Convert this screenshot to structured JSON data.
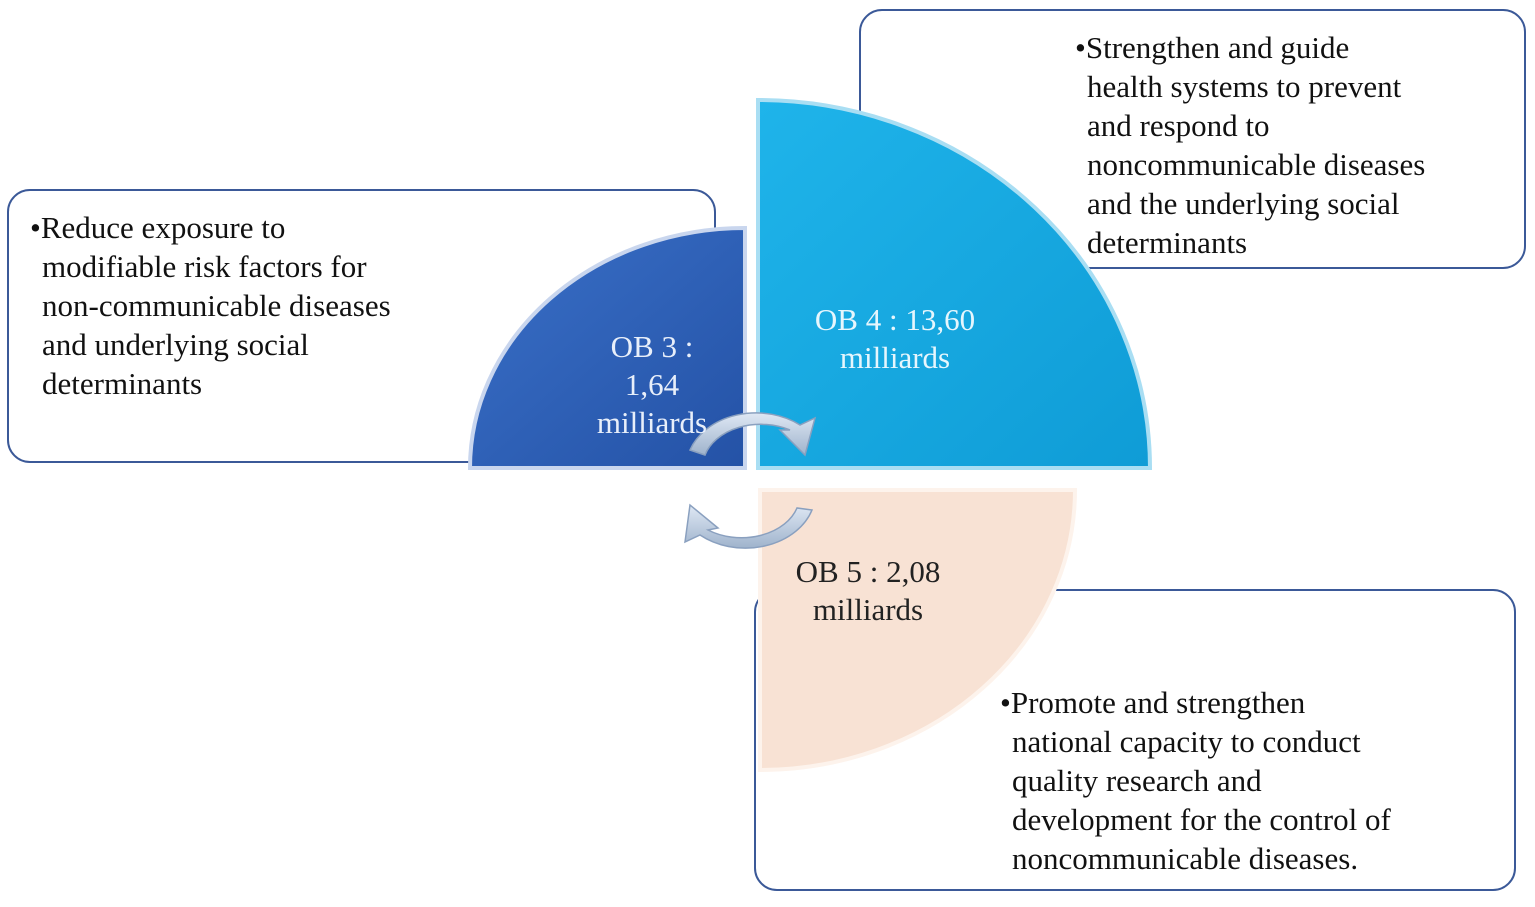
{
  "boxes": [
    {
      "lines": [
        "•Reduce exposure to",
        "modifiable risk factors for",
        "non-communicable diseases",
        "and underlying social",
        "determinants"
      ]
    },
    {
      "lines": [
        "•Strengthen and guide",
        "health systems to prevent",
        "and respond to",
        "noncommunicable diseases",
        "and the underlying social",
        "determinants"
      ]
    },
    {
      "lines": [
        "•Promote and strengthen",
        "national capacity to conduct",
        "quality research and",
        "development for the control of",
        "noncommunicable diseases."
      ]
    }
  ],
  "segments": [
    {
      "lines": [
        "OB 3 :",
        "1,64",
        "milliards"
      ]
    },
    {
      "lines": [
        "OB 4 : 13,60",
        "milliards"
      ]
    },
    {
      "lines": [
        "OB 5 : 2,08",
        "milliards"
      ]
    }
  ]
}
